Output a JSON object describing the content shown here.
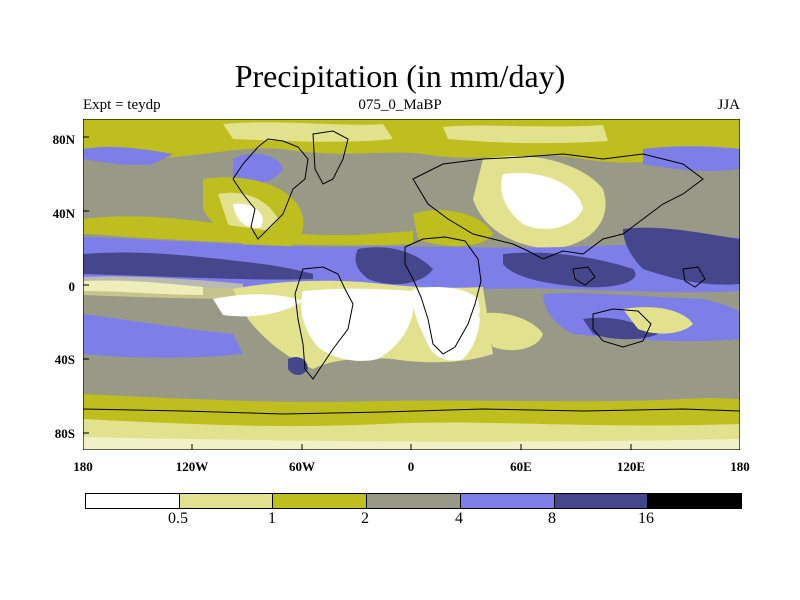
{
  "title": "Precipitation (in mm/day)",
  "subtitle_left": "Expt = teydp",
  "subtitle_center": "075_0_MaBP",
  "subtitle_right": "JJA",
  "lat_labels": [
    "80N",
    "40N",
    "0",
    "40S",
    "80S"
  ],
  "lon_labels": [
    "180",
    "120W",
    "60W",
    "0",
    "60E",
    "120E",
    "180"
  ],
  "legend": {
    "colors": [
      "#ffffff",
      "#e2e28e",
      "#bebe1e",
      "#999988",
      "#7e7ee8",
      "#46468c",
      "#000000"
    ],
    "labels": [
      "0.5",
      "1",
      "2",
      "4",
      "8",
      "16"
    ]
  },
  "colors": {
    "white": "#ffffff",
    "pale": "#e2e28e",
    "olive": "#bebe1e",
    "gray": "#999988",
    "blue": "#7e7ee8",
    "navy": "#46468c"
  }
}
